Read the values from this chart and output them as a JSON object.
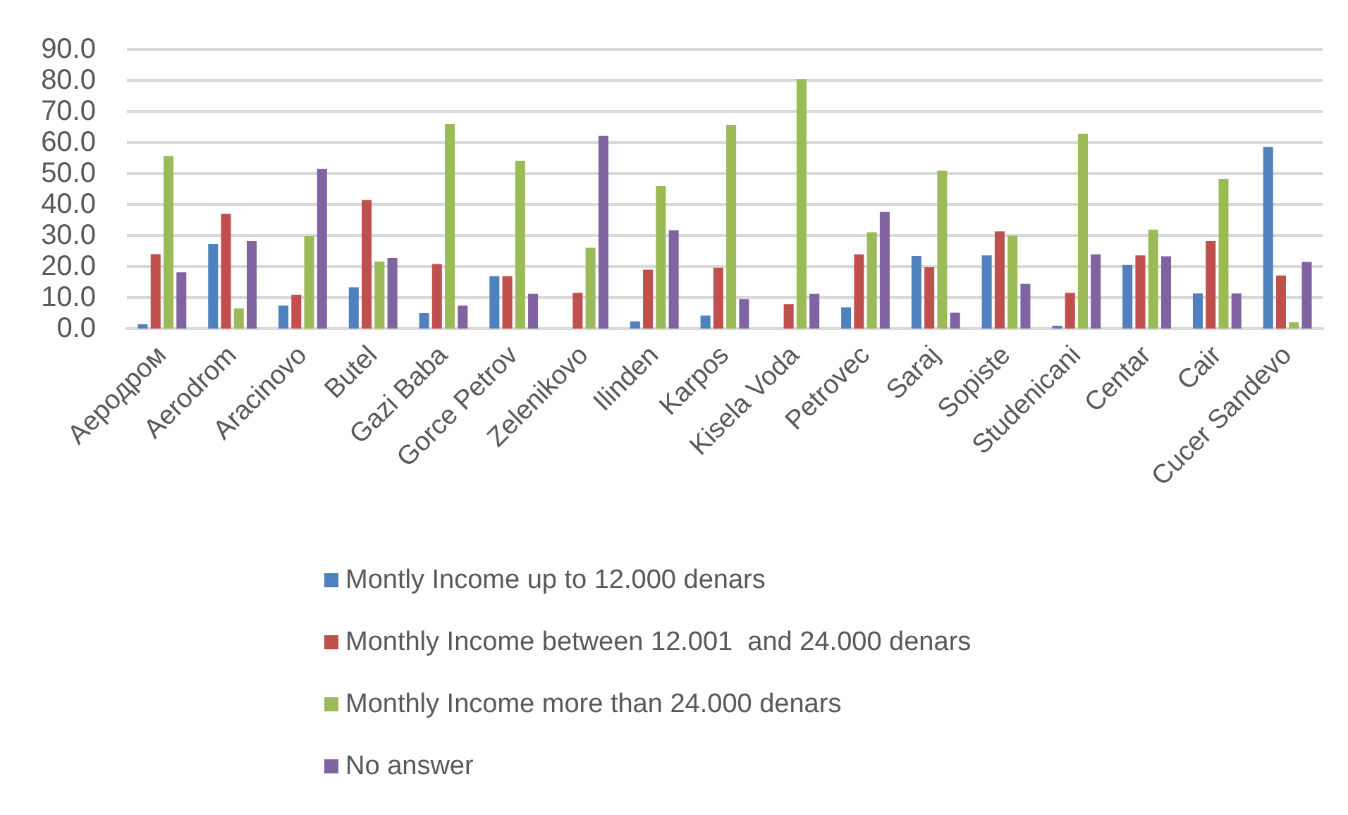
{
  "chart_data": {
    "type": "bar",
    "categories": [
      "Аеродром",
      "Aerodrom",
      "Aracinovo",
      "Butel",
      "Gazi Baba",
      "Gorce Petrov",
      "Zelenikovo",
      "Ilinden",
      "Karpos",
      "Kisela Voda",
      "Petrovec",
      "Saraj",
      "Sopiste",
      "Studenicani",
      "Centar",
      "Cair",
      "Cucer Sandevo"
    ],
    "series": [
      {
        "name": "Montly Income up to 12.000 denars",
        "color": "#4f81bd",
        "values": [
          1.4,
          27.3,
          7.4,
          13.3,
          5.0,
          16.9,
          null,
          2.3,
          4.2,
          null,
          6.8,
          23.4,
          23.6,
          0.9,
          20.5,
          11.3,
          58.5
        ]
      },
      {
        "name": "Monthly Income between 12.001  and 24.000 denars",
        "color": "#c0504d",
        "values": [
          24.0,
          37.0,
          10.9,
          41.4,
          20.8,
          16.9,
          11.5,
          19.0,
          19.6,
          7.9,
          23.9,
          19.8,
          31.3,
          11.5,
          23.6,
          28.2,
          17.1
        ]
      },
      {
        "name": "Monthly Income more than 24.000 denars",
        "color": "#9bbb59",
        "values": [
          55.6,
          6.5,
          29.8,
          21.6,
          65.9,
          54.1,
          26.0,
          45.9,
          65.7,
          80.4,
          31.0,
          50.9,
          29.9,
          62.8,
          31.9,
          48.2,
          2.0
        ]
      },
      {
        "name": "No answer",
        "color": "#8064a2",
        "values": [
          18.1,
          28.2,
          51.4,
          22.7,
          7.4,
          11.2,
          62.1,
          31.7,
          9.5,
          11.2,
          37.6,
          5.1,
          14.4,
          23.9,
          23.3,
          11.3,
          21.5
        ]
      }
    ],
    "ylim": [
      0,
      90
    ],
    "yticks": [
      {
        "value": 0,
        "label": "0.0"
      },
      {
        "value": 10,
        "label": "10.0"
      },
      {
        "value": 20,
        "label": "20.0"
      },
      {
        "value": 30,
        "label": "30.0"
      },
      {
        "value": 40,
        "label": "40.0"
      },
      {
        "value": 50,
        "label": "50.0"
      },
      {
        "value": 60,
        "label": "60.0"
      },
      {
        "value": 70,
        "label": "70.0"
      },
      {
        "value": 80,
        "label": "80.0"
      },
      {
        "value": 90,
        "label": "90.0"
      }
    ],
    "grid": "y",
    "legend": "bottom"
  }
}
